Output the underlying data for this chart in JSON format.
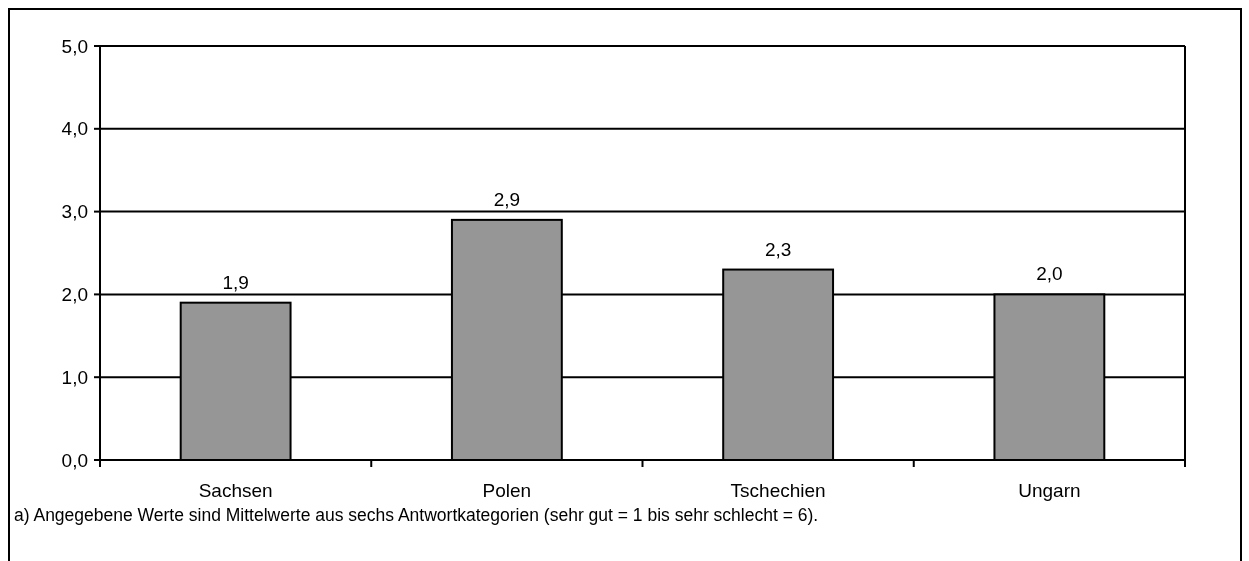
{
  "chart_data": {
    "type": "bar",
    "categories": [
      "Sachsen",
      "Polen",
      "Tschechien",
      "Ungarn"
    ],
    "values": [
      1.9,
      2.9,
      2.3,
      2.0
    ],
    "value_labels": [
      "1,9",
      "2,9",
      "2,3",
      "2,0"
    ],
    "color": "#969696",
    "ylim": [
      0,
      5
    ],
    "yticks": [
      {
        "value": 0,
        "label": "0,0"
      },
      {
        "value": 1,
        "label": "1,0"
      },
      {
        "value": 2,
        "label": "2,0"
      },
      {
        "value": 3,
        "label": "3,0"
      },
      {
        "value": 4,
        "label": "4,0"
      },
      {
        "value": 5,
        "label": "5,0"
      }
    ],
    "grid": "y",
    "annotations": [
      "a) Angegebene Werte sind Mittelwerte aus sechs Antwortkategorien (sehr gut = 1 bis sehr schlecht = 6)."
    ]
  }
}
